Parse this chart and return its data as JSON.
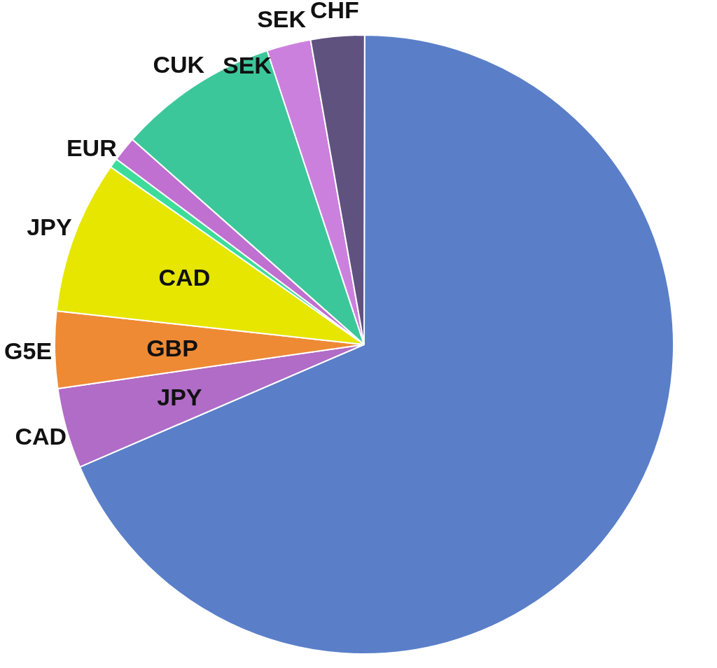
{
  "chart_data": {
    "type": "pie",
    "categories": [
      null,
      "CAD",
      "G5E",
      "JPY",
      "EUR",
      null,
      "CUK",
      "SEK",
      "CHF"
    ],
    "values": [
      68.5,
      4.2,
      4,
      8,
      0.5,
      1.3,
      8.4,
      2.3,
      2.8
    ],
    "colors": [
      "#5a7fc8",
      "#b06cc6",
      "#ee8a34",
      "#e6e600",
      "#3ddc9a",
      "#c070d0",
      "#3cc79a",
      "#cc80dd",
      "#5f527f"
    ],
    "annotations": [
      {
        "text": "JPY",
        "x": "CAD"
      },
      {
        "text": "GBP",
        "x": "G5E"
      },
      {
        "text": "CAD",
        "x": "JPY"
      },
      "SEK"
    ]
  }
}
